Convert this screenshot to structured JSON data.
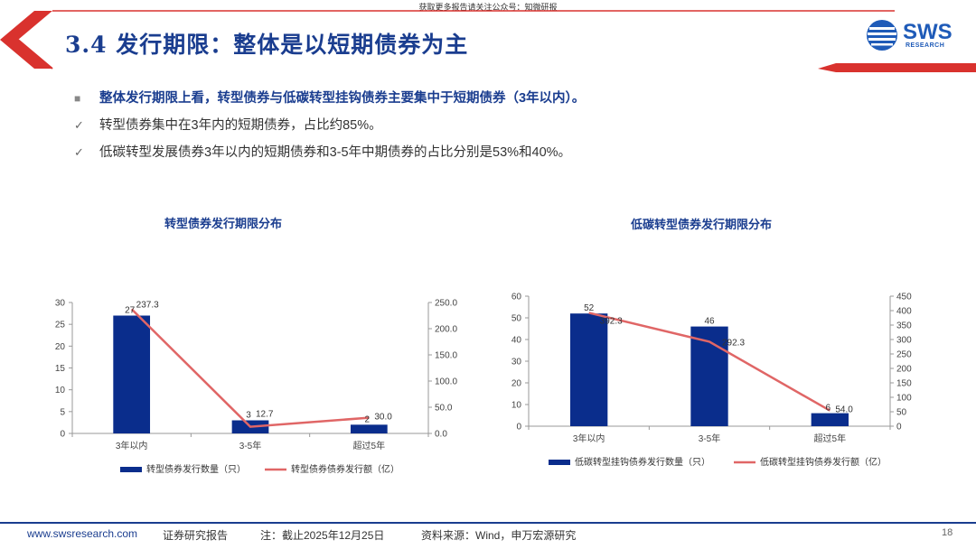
{
  "top_note": "获取更多报告请关注公众号：知微研报",
  "title": "3.4 发行期限：整体是以短期债券为主",
  "logo": {
    "name": "SWS",
    "sub": "RESEARCH"
  },
  "bullets": [
    {
      "type": "main",
      "text": "整体发行期限上看，转型债券与低碳转型挂钩债券主要集中于短期债券（3年以内）。"
    },
    {
      "type": "sub",
      "text": "转型债券集中在3年内的短期债券，占比约85%。"
    },
    {
      "type": "sub",
      "text": "低碳转型发展债券3年以内的短期债券和3-5年中期债券的占比分别是53%和40%。"
    }
  ],
  "chart_data": [
    {
      "type": "bar",
      "title": "转型债券发行期限分布",
      "categories": [
        "3年以内",
        "3-5年",
        "超过5年"
      ],
      "series": [
        {
          "name": "转型债券发行数量（只）",
          "kind": "bar",
          "axis": "left",
          "color": "#0a2d8c",
          "values": [
            27,
            3,
            2
          ],
          "labels": [
            "27",
            "3",
            "2"
          ]
        },
        {
          "name": "转型债券债券发行额（亿）",
          "kind": "line",
          "axis": "right",
          "color": "#e06666",
          "values": [
            237.3,
            12.7,
            30.0
          ],
          "labels": [
            "237.3",
            "12.7",
            "30.0"
          ]
        }
      ],
      "ylim_left": [
        0,
        30
      ],
      "yticks_left": [
        "0",
        "5",
        "10",
        "15",
        "20",
        "25",
        "30"
      ],
      "ylim_right": [
        0,
        250
      ],
      "yticks_right": [
        "0.0",
        "50.0",
        "100.0",
        "150.0",
        "200.0",
        "250.0"
      ],
      "legend_position": "bottom"
    },
    {
      "type": "bar",
      "title": "低碳转型债券发行期限分布",
      "categories": [
        "3年以内",
        "3-5年",
        "超过5年"
      ],
      "series": [
        {
          "name": "低碳转型挂钩债券发行数量（只）",
          "kind": "bar",
          "axis": "left",
          "color": "#0a2d8c",
          "values": [
            52,
            46,
            6
          ],
          "labels": [
            "52",
            "46",
            "6"
          ]
        },
        {
          "name": "低碳转型挂钩债券发行额（亿）",
          "kind": "line",
          "axis": "right",
          "color": "#e06666",
          "values": [
            392.3,
            292.3,
            54.0
          ],
          "labels": [
            "392.3",
            "292.3",
            "54.0"
          ]
        }
      ],
      "ylim_left": [
        0,
        60
      ],
      "yticks_left": [
        "0",
        "10",
        "20",
        "30",
        "40",
        "50",
        "60"
      ],
      "ylim_right": [
        0,
        450
      ],
      "yticks_right": [
        "0",
        "50",
        "100",
        "150",
        "200",
        "250",
        "300",
        "350",
        "400",
        "450"
      ],
      "legend_position": "bottom"
    }
  ],
  "footer": {
    "site": "www.swsresearch.com",
    "type": "证券研究报告",
    "note": "注：截止2025年12月25日",
    "source": "资料来源：Wind，申万宏源研究",
    "page": "18"
  },
  "colors": {
    "primary": "#1a3d8f",
    "accent_red": "#d9322e",
    "bar": "#0a2d8c",
    "line": "#e06666"
  }
}
